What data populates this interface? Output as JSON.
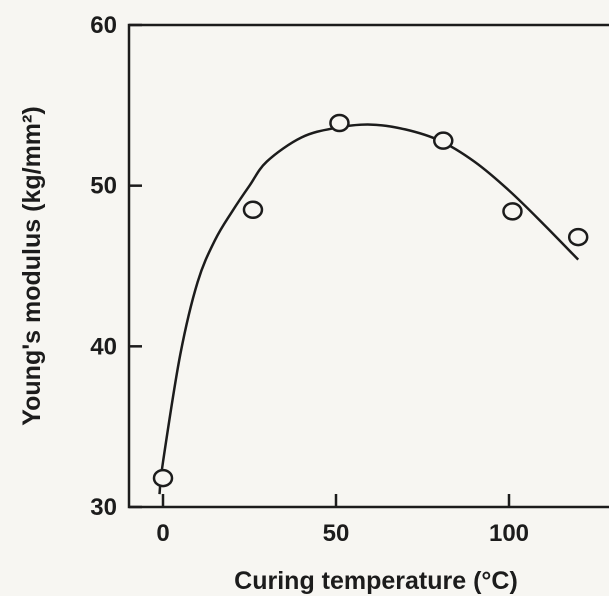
{
  "chart_data": {
    "type": "scatter",
    "xlabel": "Curing temperature (°C)",
    "ylabel": "Young's modulus (kg/mm²)",
    "xlim": [
      -10,
      128
    ],
    "ylim": [
      30,
      60
    ],
    "x_ticks": [
      0,
      50,
      100
    ],
    "y_ticks": [
      30,
      40,
      50,
      60
    ],
    "x_tick_labels": [
      "0",
      "50",
      "100"
    ],
    "y_tick_labels": [
      "30",
      "40",
      "50",
      "60"
    ],
    "grid": false,
    "legend": "none",
    "series": [
      {
        "type": "scatter",
        "marker": "open-circle",
        "points": [
          {
            "x": 0,
            "y": 31.8
          },
          {
            "x": 26,
            "y": 48.5
          },
          {
            "x": 51,
            "y": 53.9
          },
          {
            "x": 81,
            "y": 52.8
          },
          {
            "x": 101,
            "y": 48.4
          },
          {
            "x": 120,
            "y": 46.8
          }
        ]
      },
      {
        "type": "line",
        "style": "smooth-fit",
        "points": [
          {
            "x": -1,
            "y": 30.8
          },
          {
            "x": 0,
            "y": 32.8
          },
          {
            "x": 5,
            "y": 39.5
          },
          {
            "x": 10,
            "y": 44.0
          },
          {
            "x": 15,
            "y": 46.6
          },
          {
            "x": 20,
            "y": 48.4
          },
          {
            "x": 25,
            "y": 50.0
          },
          {
            "x": 30,
            "y": 51.5
          },
          {
            "x": 40,
            "y": 53.0
          },
          {
            "x": 50,
            "y": 53.6
          },
          {
            "x": 60,
            "y": 53.8
          },
          {
            "x": 70,
            "y": 53.5
          },
          {
            "x": 80,
            "y": 52.8
          },
          {
            "x": 90,
            "y": 51.5
          },
          {
            "x": 100,
            "y": 49.7
          },
          {
            "x": 110,
            "y": 47.6
          },
          {
            "x": 120,
            "y": 45.4
          }
        ]
      }
    ]
  }
}
